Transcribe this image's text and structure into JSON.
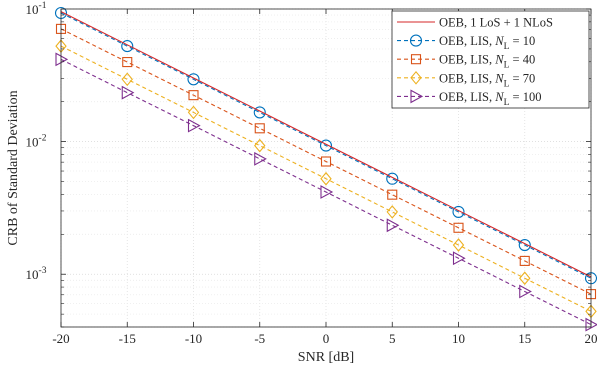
{
  "chart_data": {
    "type": "line",
    "xlabel": "SNR [dB]",
    "ylabel": "CRB of Standard Deviation",
    "xlim": [
      -20,
      20
    ],
    "ylim": [
      0.0004,
      0.1
    ],
    "yscale": "log",
    "grid": true,
    "legend_position": "top-right",
    "x_ticks": [
      "-20",
      "-15",
      "-10",
      "-5",
      "0",
      "5",
      "10",
      "15",
      "20"
    ],
    "y_ticks": [
      {
        "base": "10",
        "exp": "-1"
      },
      {
        "base": "10",
        "exp": "-2"
      },
      {
        "base": "10",
        "exp": "-3"
      }
    ],
    "x": [
      -20,
      -15,
      -10,
      -5,
      0,
      5,
      10,
      15,
      20
    ],
    "series": [
      {
        "name": "OEB, 1 LoS + 1 NLoS",
        "name_main": "OEB, 1 LoS + 1 NLoS",
        "color": "#d62728",
        "style": "solid",
        "marker": "none",
        "values": [
          0.0955,
          0.0537,
          0.0302,
          0.017,
          0.00955,
          0.00537,
          0.00302,
          0.0017,
          0.000955
        ]
      },
      {
        "name": "OEB, LIS, N_L = 10",
        "name_main": "OEB, LIS, ",
        "name_var": "N",
        "name_sub": "L",
        "name_tail": " = 10",
        "color": "#0072bd",
        "style": "dashed",
        "marker": "circle",
        "values": [
          0.0933,
          0.0525,
          0.0295,
          0.0166,
          0.00933,
          0.00525,
          0.00295,
          0.00166,
          0.000933
        ]
      },
      {
        "name": "OEB, LIS, N_L = 40",
        "name_main": "OEB, LIS, ",
        "name_var": "N",
        "name_sub": "L",
        "name_tail": " = 40",
        "color": "#d95319",
        "style": "dashed",
        "marker": "square",
        "values": [
          0.0708,
          0.0398,
          0.0224,
          0.0126,
          0.00708,
          0.00398,
          0.00224,
          0.00126,
          0.000708
        ]
      },
      {
        "name": "OEB, LIS, N_L = 70",
        "name_main": "OEB, LIS, ",
        "name_var": "N",
        "name_sub": "L",
        "name_tail": " = 70",
        "color": "#edb120",
        "style": "dashed",
        "marker": "diamond",
        "values": [
          0.0525,
          0.0295,
          0.0166,
          0.00933,
          0.00525,
          0.00295,
          0.00166,
          0.000933,
          0.000525
        ]
      },
      {
        "name": "OEB, LIS, N_L = 100",
        "name_main": "OEB, LIS, ",
        "name_var": "N",
        "name_sub": "L",
        "name_tail": " = 100",
        "color": "#7e2f8e",
        "style": "dashed",
        "marker": "triangle-right",
        "values": [
          0.0417,
          0.0234,
          0.0132,
          0.00741,
          0.00417,
          0.00234,
          0.00132,
          0.000741,
          0.000417
        ]
      }
    ]
  }
}
